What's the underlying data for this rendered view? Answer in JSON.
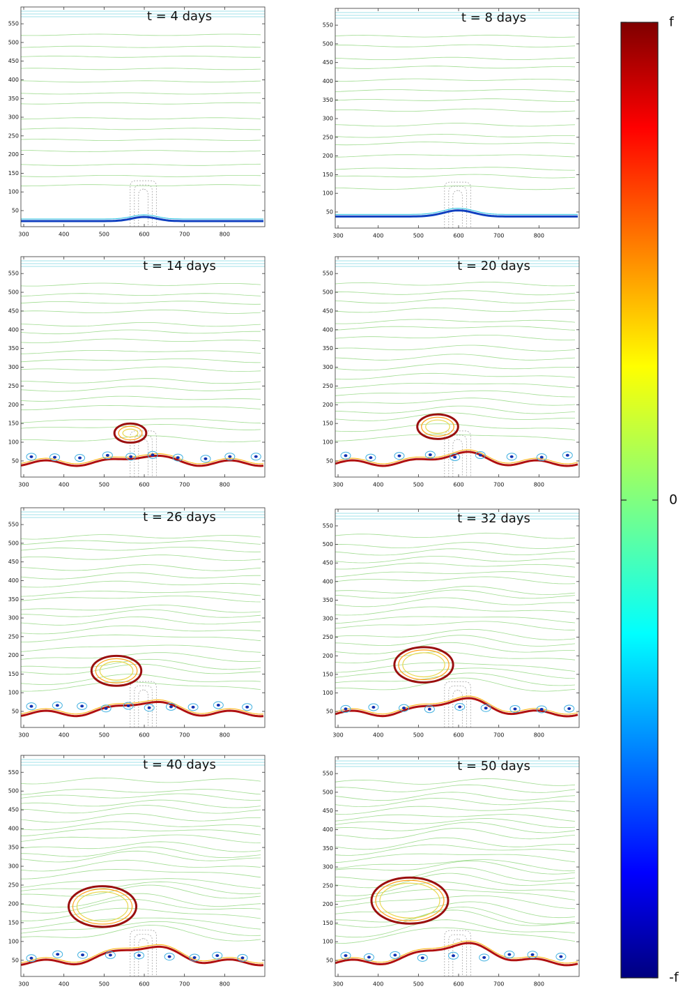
{
  "chart_data": [
    {
      "type": "contour",
      "title": "t = 4 days",
      "xlim": [
        293,
        900
      ],
      "ylim": [
        7,
        595
      ],
      "xticks": [
        300,
        400,
        500,
        600,
        700,
        800
      ],
      "yticks": [
        50,
        100,
        150,
        200,
        250,
        300,
        350,
        400,
        450,
        500,
        550
      ]
    },
    {
      "type": "contour",
      "title": "t = 8 days",
      "xlim": [
        293,
        900
      ],
      "ylim": [
        7,
        595
      ],
      "xticks": [
        300,
        400,
        500,
        600,
        700,
        800
      ],
      "yticks": [
        50,
        100,
        150,
        200,
        250,
        300,
        350,
        400,
        450,
        500,
        550
      ]
    },
    {
      "type": "contour",
      "title": "t = 14 days",
      "xlim": [
        293,
        900
      ],
      "ylim": [
        7,
        595
      ],
      "xticks": [
        300,
        400,
        500,
        600,
        700,
        800
      ],
      "yticks": [
        50,
        100,
        150,
        200,
        250,
        300,
        350,
        400,
        450,
        500,
        550
      ]
    },
    {
      "type": "contour",
      "title": "t = 20 days",
      "xlim": [
        293,
        900
      ],
      "ylim": [
        7,
        595
      ],
      "xticks": [
        300,
        400,
        500,
        600,
        700,
        800
      ],
      "yticks": [
        50,
        100,
        150,
        200,
        250,
        300,
        350,
        400,
        450,
        500,
        550
      ]
    },
    {
      "type": "contour",
      "title": "t = 26 days",
      "xlim": [
        293,
        900
      ],
      "ylim": [
        7,
        595
      ],
      "xticks": [
        300,
        400,
        500,
        600,
        700,
        800
      ],
      "yticks": [
        50,
        100,
        150,
        200,
        250,
        300,
        350,
        400,
        450,
        500,
        550
      ]
    },
    {
      "type": "contour",
      "title": "t = 32 days",
      "xlim": [
        293,
        900
      ],
      "ylim": [
        7,
        595
      ],
      "xticks": [
        300,
        400,
        500,
        600,
        700,
        800
      ],
      "yticks": [
        50,
        100,
        150,
        200,
        250,
        300,
        350,
        400,
        450,
        500,
        550
      ]
    },
    {
      "type": "contour",
      "title": "t = 40 days",
      "xlim": [
        293,
        900
      ],
      "ylim": [
        7,
        595
      ],
      "xticks": [
        300,
        400,
        500,
        600,
        700,
        800
      ],
      "yticks": [
        50,
        100,
        150,
        200,
        250,
        300,
        350,
        400,
        450,
        500,
        550
      ]
    },
    {
      "type": "contour",
      "title": "t = 50 days",
      "xlim": [
        293,
        900
      ],
      "ylim": [
        7,
        595
      ],
      "xticks": [
        300,
        400,
        500,
        600,
        700,
        800
      ],
      "yticks": [
        50,
        100,
        150,
        200,
        250,
        300,
        350,
        400,
        450,
        500,
        550
      ]
    },
    {
      "type": "colorbar",
      "ylim": [
        -1,
        1
      ],
      "yticks": [
        {
          "value": 1,
          "label": "f"
        },
        {
          "value": 0,
          "label": "0"
        },
        {
          "value": -1,
          "label": "-f"
        }
      ]
    }
  ]
}
